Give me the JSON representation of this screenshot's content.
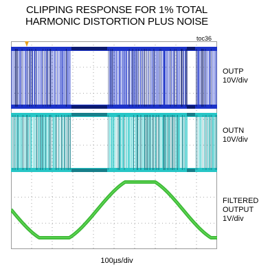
{
  "title_line1": "CLIPPING RESPONSE FOR 1% TOTAL",
  "title_line2": "HARMONIC DISTORTION PLUS NOISE",
  "figure_id": "toc36",
  "colors": {
    "outp": "#1c33c9",
    "outp_dark": "#0b1a70",
    "outn": "#27c6c6",
    "outn_dark": "#177f8a",
    "filtered": "#33b52c",
    "grid": "#8a8a8a",
    "marker": "#e6a020"
  },
  "chart_data": {
    "type": "line",
    "title": "CLIPPING RESPONSE FOR 1% TOTAL HARMONIC DISTORTION PLUS NOISE",
    "xlabel": "100µs/div",
    "grid": true,
    "x_divisions": 10,
    "y_divisions": 8,
    "series": [
      {
        "name": "OUTP",
        "scale": "10V/div",
        "label_lines": [
          "OUTP",
          "10V/div"
        ]
      },
      {
        "name": "OUTN",
        "scale": "10V/div",
        "label_lines": [
          "OUTN",
          "10V/div"
        ]
      },
      {
        "name": "FILTERED OUTPUT",
        "scale": "1V/div",
        "label_lines": [
          "FILTERED",
          "OUTPUT",
          "1V/div"
        ]
      }
    ]
  }
}
